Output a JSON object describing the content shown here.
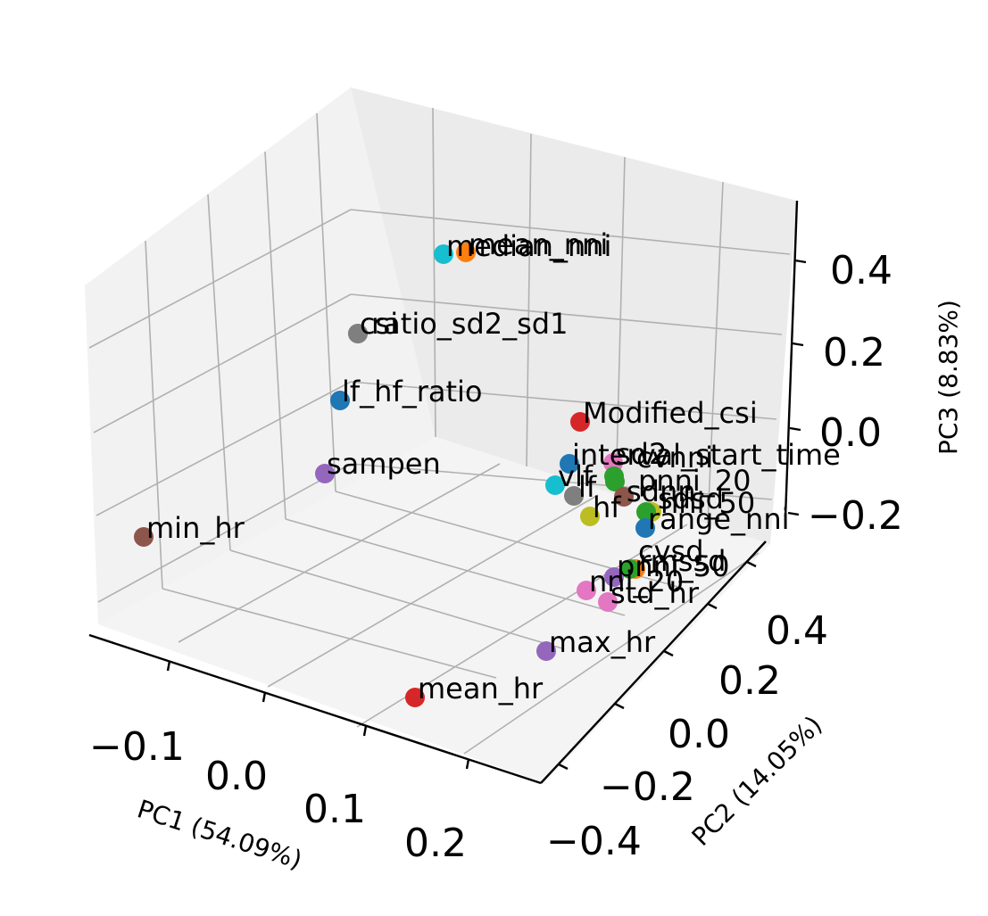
{
  "chart_data": {
    "type": "scatter",
    "projection": "3d",
    "title": "",
    "xlabel": "PC1 (54.09%)",
    "ylabel": "PC2 (14.05%)",
    "zlabel": "PC3 (8.83%)",
    "x_ticks": [
      "−0.1",
      "0.0",
      "0.1",
      "0.2"
    ],
    "y_ticks": [
      "−0.4",
      "−0.2",
      "0.0",
      "0.2",
      "0.4"
    ],
    "z_ticks": [
      "−0.2",
      "0.0",
      "0.2",
      "0.4"
    ],
    "grid": true,
    "points": [
      {
        "label": "median_nni",
        "color": "#17becf"
      },
      {
        "label": "mean_nni",
        "color": "#ff7f0e"
      },
      {
        "label": "csi",
        "color": "#7f7f7f"
      },
      {
        "label": "ratio_sd2_sd1",
        "color": "#7f7f7f"
      },
      {
        "label": "lf_hf_ratio",
        "color": "#1f77b4"
      },
      {
        "label": "Modified_csi",
        "color": "#d62728"
      },
      {
        "label": "sampen",
        "color": "#9467bd"
      },
      {
        "label": "interval_start_time",
        "color": "#1f77b4"
      },
      {
        "label": "sd2",
        "color": "#e377c2"
      },
      {
        "label": "cvnni",
        "color": "#2ca02c"
      },
      {
        "label": "vlf",
        "color": "#17becf"
      },
      {
        "label": "lf",
        "color": "#7f7f7f"
      },
      {
        "label": "pnni_20",
        "color": "#2ca02c"
      },
      {
        "label": "sdnn",
        "color": "#8c564b"
      },
      {
        "label": "nni_50",
        "color": "#bcbd22"
      },
      {
        "label": "hf",
        "color": "#bcbd22"
      },
      {
        "label": "sdsd",
        "color": "#2ca02c"
      },
      {
        "label": "range_nni",
        "color": "#1f77b4"
      },
      {
        "label": "min_hr",
        "color": "#8c564b"
      },
      {
        "label": "cvsd",
        "color": "#ff7f0e"
      },
      {
        "label": "rmssd",
        "color": "#2ca02c"
      },
      {
        "label": "pnni_50",
        "color": "#9467bd"
      },
      {
        "label": "nni_20",
        "color": "#e377c2"
      },
      {
        "label": "std_hr",
        "color": "#e377c2"
      },
      {
        "label": "max_hr",
        "color": "#9467bd"
      },
      {
        "label": "mean_hr",
        "color": "#d62728"
      }
    ]
  }
}
